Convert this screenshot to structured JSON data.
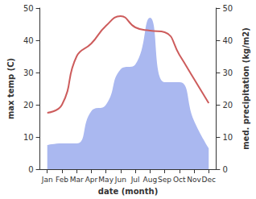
{
  "chart_data": {
    "type": "line",
    "xlabel": "date (month)",
    "ylabel": "max temp (C)",
    "y2label": "med. precipitation (kg/m2)",
    "categories": [
      "Jan",
      "Feb",
      "Mar",
      "Apr",
      "May",
      "Jun",
      "Jul",
      "Aug",
      "Sep",
      "Oct",
      "Nov",
      "Dec"
    ],
    "ylim": [
      0,
      50
    ],
    "yticks": [
      0,
      10,
      20,
      30,
      40,
      50
    ],
    "y2lim": [
      0,
      50
    ],
    "y2ticks": [
      0,
      10,
      20,
      30,
      40,
      50
    ],
    "grid": false,
    "series": [
      {
        "name": "max temp",
        "type": "line",
        "color": "#cd5c5c",
        "marker": "none",
        "values": [
          17.5,
          20,
          35,
          39,
          44.5,
          47.5,
          44,
          43,
          42.5,
          35.5,
          28,
          20.5
        ]
      },
      {
        "name": "med. precipitation",
        "type": "area",
        "axis": "y2",
        "color": "#aab8f0",
        "marker": "none",
        "values": [
          7.5,
          8,
          8,
          18,
          20,
          31,
          32.5,
          47,
          27,
          27,
          15,
          6.5
        ]
      }
    ]
  }
}
